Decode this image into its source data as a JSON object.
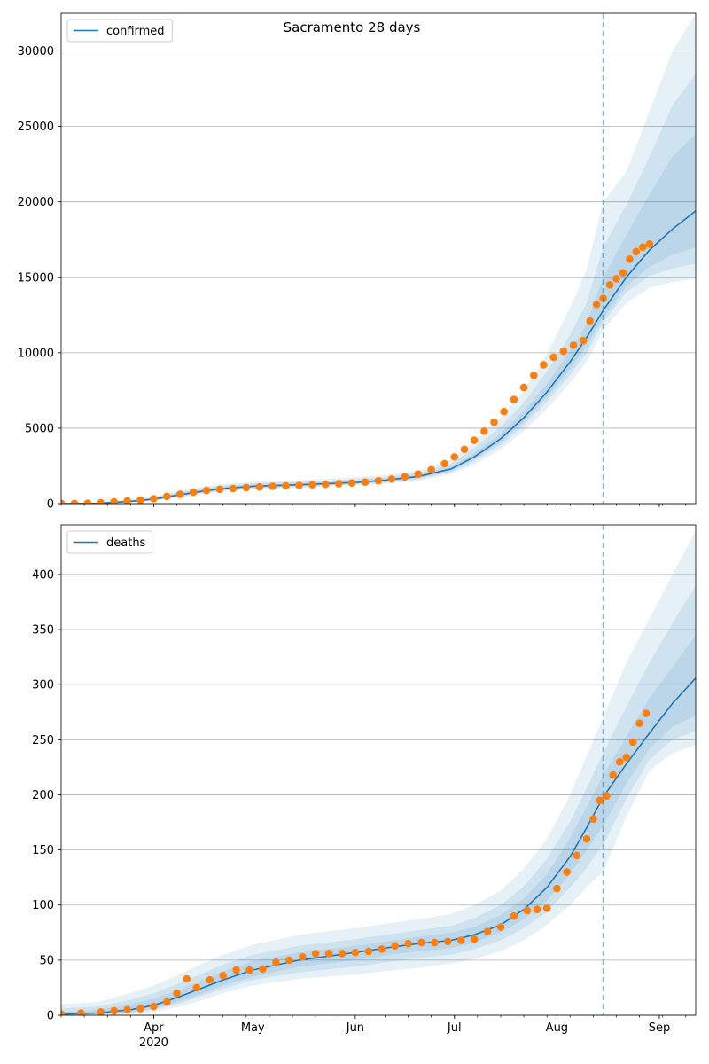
{
  "figure": {
    "title": "Sacramento 28 days",
    "x_tick_labels": [
      {
        "label": "Apr",
        "date": "2020-04-01"
      },
      {
        "label": "May",
        "date": "2020-05-01"
      },
      {
        "label": "Jun",
        "date": "2020-06-01"
      },
      {
        "label": "Jul",
        "date": "2020-07-01"
      },
      {
        "label": "Aug",
        "date": "2020-08-01"
      },
      {
        "label": "Sep",
        "date": "2020-09-01"
      }
    ],
    "x_year_label": "2020",
    "x_range": [
      "2020-03-04",
      "2020-09-12"
    ],
    "forecast_start": "2020-08-15"
  },
  "colors": {
    "model_line": "#1f77b4",
    "observed_points": "#ff7f0e",
    "band": "#1f77b4",
    "grid": "#b0b0b0",
    "forecast_line": "#1f77b4"
  },
  "chart_data": [
    {
      "type": "line",
      "legend": "confirmed",
      "legend_location": "upper-left",
      "ylim": [
        0,
        32500
      ],
      "yticks": [
        0,
        5000,
        10000,
        15000,
        20000,
        25000,
        30000
      ],
      "grid": "horizontal",
      "model_median": {
        "x": [
          "2020-03-04",
          "2020-03-15",
          "2020-03-25",
          "2020-04-01",
          "2020-04-08",
          "2020-04-15",
          "2020-04-22",
          "2020-05-01",
          "2020-05-15",
          "2020-06-01",
          "2020-06-10",
          "2020-06-20",
          "2020-06-30",
          "2020-07-07",
          "2020-07-15",
          "2020-07-22",
          "2020-07-29",
          "2020-08-05",
          "2020-08-10",
          "2020-08-15",
          "2020-08-22",
          "2020-08-29",
          "2020-09-05",
          "2020-09-12"
        ],
        "y": [
          0,
          20,
          150,
          300,
          550,
          800,
          1000,
          1150,
          1250,
          1400,
          1550,
          1800,
          2300,
          3100,
          4300,
          5700,
          7400,
          9400,
          11000,
          12800,
          15000,
          16800,
          18200,
          19400
        ]
      },
      "bands": [
        {
          "lo": [
            0,
            0,
            60,
            180,
            380,
            600,
            800,
            950,
            1050,
            1200,
            1320,
            1500,
            1950,
            2600,
            3600,
            4800,
            6300,
            8000,
            9400,
            11500,
            13300,
            14300,
            14700,
            14900
          ],
          "hi": [
            60,
            80,
            270,
            500,
            820,
            1100,
            1300,
            1450,
            1550,
            1750,
            1900,
            2200,
            2900,
            4100,
            5700,
            7500,
            9900,
            13000,
            15500,
            20000,
            22000,
            26000,
            30000,
            32500
          ]
        },
        {
          "lo": [
            0,
            5,
            90,
            220,
            430,
            660,
            860,
            1010,
            1110,
            1270,
            1400,
            1610,
            2080,
            2800,
            3880,
            5170,
            6780,
            8530,
            10000,
            12000,
            14000,
            15100,
            15600,
            15900
          ],
          "hi": [
            40,
            55,
            230,
            430,
            730,
            1000,
            1200,
            1350,
            1440,
            1620,
            1760,
            2040,
            2660,
            3680,
            5110,
            6700,
            8770,
            11200,
            13300,
            17000,
            19800,
            23000,
            26400,
            28500
          ]
        },
        {
          "lo": [
            0,
            10,
            115,
            255,
            480,
            715,
            915,
            1065,
            1165,
            1325,
            1460,
            1690,
            2175,
            2940,
            4070,
            5420,
            7060,
            8920,
            10430,
            12300,
            14400,
            15700,
            16500,
            17000
          ],
          "hi": [
            30,
            40,
            195,
            370,
            650,
            910,
            1110,
            1260,
            1350,
            1500,
            1660,
            1900,
            2460,
            3360,
            4660,
            6140,
            7950,
            10150,
            11900,
            15000,
            17800,
            20500,
            23000,
            24500
          ]
        }
      ],
      "observed": {
        "x": [
          "2020-03-04",
          "2020-03-08",
          "2020-03-12",
          "2020-03-16",
          "2020-03-20",
          "2020-03-24",
          "2020-03-28",
          "2020-04-01",
          "2020-04-05",
          "2020-04-09",
          "2020-04-13",
          "2020-04-17",
          "2020-04-21",
          "2020-04-25",
          "2020-04-29",
          "2020-05-03",
          "2020-05-07",
          "2020-05-11",
          "2020-05-15",
          "2020-05-19",
          "2020-05-23",
          "2020-05-27",
          "2020-05-31",
          "2020-06-04",
          "2020-06-08",
          "2020-06-12",
          "2020-06-16",
          "2020-06-20",
          "2020-06-24",
          "2020-06-28",
          "2020-07-01",
          "2020-07-04",
          "2020-07-07",
          "2020-07-10",
          "2020-07-13",
          "2020-07-16",
          "2020-07-19",
          "2020-07-22",
          "2020-07-25",
          "2020-07-28",
          "2020-07-31",
          "2020-08-03",
          "2020-08-06",
          "2020-08-09",
          "2020-08-11",
          "2020-08-13",
          "2020-08-15",
          "2020-08-17",
          "2020-08-19",
          "2020-08-21",
          "2020-08-23",
          "2020-08-25",
          "2020-08-27",
          "2020-08-29"
        ],
        "y": [
          10,
          15,
          30,
          60,
          120,
          180,
          240,
          330,
          480,
          620,
          760,
          880,
          950,
          1000,
          1060,
          1110,
          1150,
          1180,
          1210,
          1250,
          1280,
          1320,
          1370,
          1430,
          1520,
          1630,
          1780,
          1960,
          2250,
          2650,
          3100,
          3600,
          4200,
          4800,
          5400,
          6100,
          6900,
          7700,
          8500,
          9200,
          9700,
          10100,
          10500,
          10800,
          12100,
          13200,
          13600,
          14500,
          14900,
          15300,
          16200,
          16700,
          17000,
          17200
        ]
      }
    },
    {
      "type": "line",
      "legend": "deaths",
      "legend_location": "upper-left",
      "ylim": [
        0,
        445
      ],
      "yticks": [
        0,
        50,
        100,
        150,
        200,
        250,
        300,
        350,
        400
      ],
      "grid": "horizontal",
      "model_median": {
        "x": [
          "2020-03-04",
          "2020-03-15",
          "2020-03-25",
          "2020-04-01",
          "2020-04-08",
          "2020-04-15",
          "2020-04-22",
          "2020-05-01",
          "2020-05-15",
          "2020-06-01",
          "2020-06-10",
          "2020-06-20",
          "2020-06-30",
          "2020-07-07",
          "2020-07-15",
          "2020-07-22",
          "2020-07-29",
          "2020-08-05",
          "2020-08-10",
          "2020-08-15",
          "2020-08-22",
          "2020-08-29",
          "2020-09-05",
          "2020-09-12"
        ],
        "y": [
          1,
          2,
          5,
          9,
          16,
          24,
          32,
          41,
          50,
          57,
          61,
          65,
          68,
          73,
          82,
          96,
          116,
          144,
          170,
          198,
          228,
          256,
          283,
          306
        ]
      },
      "bands": [
        {
          "lo": [
            0,
            0,
            1,
            3,
            7,
            13,
            20,
            27,
            33,
            37,
            40,
            43,
            47,
            51,
            58,
            68,
            82,
            100,
            116,
            130,
            180,
            222,
            238,
            245
          ],
          "hi": [
            10,
            12,
            20,
            27,
            36,
            46,
            55,
            64,
            73,
            79,
            83,
            87,
            92,
            100,
            113,
            133,
            160,
            200,
            235,
            270,
            320,
            360,
            400,
            440
          ]
        },
        {
          "lo": [
            0,
            1,
            2,
            5,
            10,
            17,
            24,
            32,
            39,
            44,
            48,
            52,
            55,
            60,
            68,
            79,
            94,
            116,
            134,
            155,
            196,
            232,
            250,
            258
          ],
          "hi": [
            6,
            8,
            14,
            20,
            28,
            37,
            46,
            55,
            63,
            69,
            73,
            77,
            81,
            88,
            100,
            117,
            142,
            176,
            206,
            238,
            280,
            320,
            356,
            390
          ]
        },
        {
          "lo": [
            0,
            1,
            3,
            6,
            12,
            19,
            27,
            35,
            44,
            50,
            54,
            58,
            61,
            66,
            75,
            87,
            104,
            128,
            150,
            172,
            210,
            242,
            262,
            272
          ],
          "hi": [
            3,
            5,
            10,
            15,
            22,
            31,
            40,
            49,
            57,
            63,
            67,
            71,
            75,
            80,
            91,
            106,
            128,
            161,
            189,
            218,
            253,
            288,
            316,
            345
          ]
        }
      ],
      "observed": {
        "x": [
          "2020-03-04",
          "2020-03-10",
          "2020-03-16",
          "2020-03-20",
          "2020-03-24",
          "2020-03-28",
          "2020-04-01",
          "2020-04-05",
          "2020-04-08",
          "2020-04-11",
          "2020-04-14",
          "2020-04-18",
          "2020-04-22",
          "2020-04-26",
          "2020-04-30",
          "2020-05-04",
          "2020-05-08",
          "2020-05-12",
          "2020-05-16",
          "2020-05-20",
          "2020-05-24",
          "2020-05-28",
          "2020-06-01",
          "2020-06-05",
          "2020-06-09",
          "2020-06-13",
          "2020-06-17",
          "2020-06-21",
          "2020-06-25",
          "2020-06-29",
          "2020-07-03",
          "2020-07-07",
          "2020-07-11",
          "2020-07-15",
          "2020-07-19",
          "2020-07-23",
          "2020-07-26",
          "2020-07-29",
          "2020-08-01",
          "2020-08-04",
          "2020-08-07",
          "2020-08-10",
          "2020-08-12",
          "2020-08-14",
          "2020-08-16",
          "2020-08-18",
          "2020-08-20",
          "2020-08-22",
          "2020-08-24",
          "2020-08-26",
          "2020-08-28"
        ],
        "y": [
          1,
          2,
          3,
          4,
          5,
          6,
          8,
          12,
          20,
          33,
          25,
          32,
          36,
          41,
          41,
          42,
          48,
          50,
          53,
          56,
          56,
          56,
          57,
          58,
          60,
          63,
          65,
          66,
          66,
          67,
          68,
          69,
          76,
          80,
          90,
          95,
          96,
          97,
          115,
          130,
          145,
          160,
          178,
          195,
          199,
          218,
          230,
          234,
          248,
          265,
          274
        ]
      }
    }
  ]
}
